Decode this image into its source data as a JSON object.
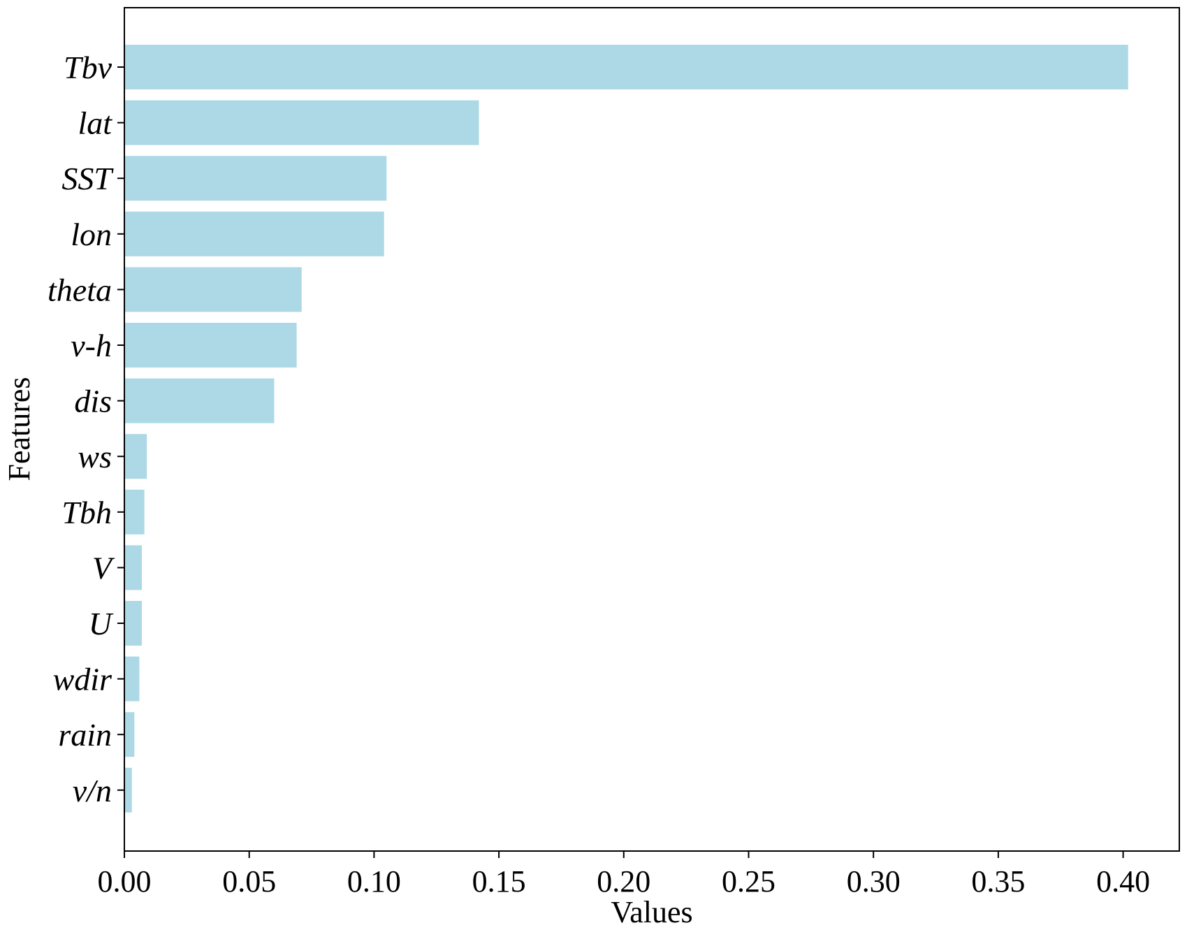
{
  "chart_data": {
    "type": "bar",
    "orientation": "horizontal",
    "title": "",
    "xlabel": "Values",
    "ylabel": "Features",
    "xlim": [
      0.0,
      0.4225
    ],
    "xticks": [
      "0.00",
      "0.05",
      "0.10",
      "0.15",
      "0.20",
      "0.25",
      "0.30",
      "0.35",
      "0.40"
    ],
    "grid": false,
    "bar_color": "#add8e6",
    "categories": [
      "Tbv",
      "lat",
      "SST",
      "lon",
      "theta",
      "v-h",
      "dis",
      "ws",
      "Tbh",
      "V",
      "U",
      "wdir",
      "rain",
      "v/n"
    ],
    "values": [
      0.402,
      0.142,
      0.105,
      0.104,
      0.071,
      0.069,
      0.06,
      0.009,
      0.008,
      0.007,
      0.007,
      0.006,
      0.004,
      0.003
    ]
  }
}
